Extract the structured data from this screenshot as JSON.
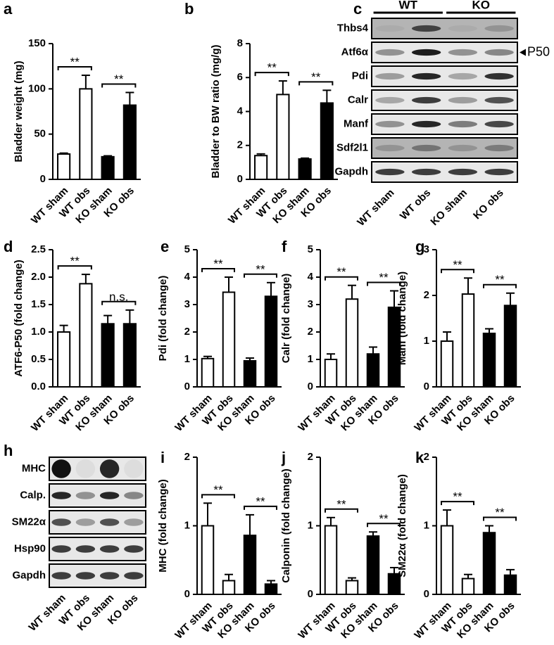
{
  "chart_data": [
    {
      "type": "bar",
      "panel": "a",
      "ylabel": "Bladder weight (mg)",
      "categories": [
        "WT sham",
        "WT obs",
        "KO sham",
        "KO obs"
      ],
      "values": [
        28,
        100,
        25,
        82
      ],
      "errors": [
        1,
        15,
        1,
        14
      ],
      "colors": [
        "#ffffff",
        "#ffffff",
        "#000000",
        "#000000"
      ],
      "ylim": [
        0,
        150
      ],
      "yticks": [
        0,
        50,
        100,
        150
      ],
      "annotations": [
        "**",
        "**"
      ]
    },
    {
      "type": "bar",
      "panel": "b",
      "ylabel": "Bladder to BW ratio (mg/g)",
      "categories": [
        "WT sham",
        "WT obs",
        "KO sham",
        "KO obs"
      ],
      "values": [
        1.4,
        5.0,
        1.2,
        4.5
      ],
      "errors": [
        0.1,
        0.8,
        0.05,
        0.75
      ],
      "colors": [
        "#ffffff",
        "#ffffff",
        "#000000",
        "#000000"
      ],
      "ylim": [
        0,
        8
      ],
      "yticks": [
        0,
        2,
        4,
        6,
        8
      ],
      "annotations": [
        "**",
        "**"
      ]
    },
    {
      "type": "blot",
      "panel": "c",
      "groups": [
        "WT",
        "KO"
      ],
      "rows": [
        "Thbs4",
        "Atf6α",
        "Pdi",
        "Calr",
        "Manf",
        "Sdf2l1",
        "Gapdh"
      ],
      "marker": "P50",
      "categories": [
        "WT sham",
        "WT obs",
        "KO sham",
        "KO obs"
      ]
    },
    {
      "type": "bar",
      "panel": "d",
      "ylabel": "ATF6-P50 (fold change)",
      "categories": [
        "WT sham",
        "WT obs",
        "KO sham",
        "KO obs"
      ],
      "values": [
        1.0,
        1.88,
        1.15,
        1.15
      ],
      "errors": [
        0.12,
        0.17,
        0.15,
        0.25
      ],
      "colors": [
        "#ffffff",
        "#ffffff",
        "#000000",
        "#000000"
      ],
      "ylim": [
        0,
        2.5
      ],
      "yticks": [
        {
          "value": 0,
          "label": "0.0"
        },
        0.5,
        {
          "value": 1,
          "label": "1.0"
        },
        1.5,
        {
          "value": 2,
          "label": "2.0"
        },
        2.5
      ],
      "annotations": [
        "**",
        "n.s."
      ]
    },
    {
      "type": "bar",
      "panel": "e",
      "ylabel": "Pdi (fold change)",
      "categories": [
        "WT sham",
        "WT obs",
        "KO sham",
        "KO obs"
      ],
      "values": [
        1.03,
        3.45,
        0.95,
        3.3
      ],
      "errors": [
        0.08,
        0.55,
        0.1,
        0.5
      ],
      "colors": [
        "#ffffff",
        "#ffffff",
        "#000000",
        "#000000"
      ],
      "ylim": [
        0,
        5
      ],
      "yticks": [
        0,
        1,
        2,
        3,
        4,
        5
      ],
      "annotations": [
        "**",
        "**"
      ]
    },
    {
      "type": "bar",
      "panel": "f",
      "ylabel": "Calr (fold change)",
      "categories": [
        "WT sham",
        "WT obs",
        "KO sham",
        "KO obs"
      ],
      "values": [
        1.0,
        3.2,
        1.2,
        2.9
      ],
      "errors": [
        0.2,
        0.5,
        0.25,
        0.6
      ],
      "colors": [
        "#ffffff",
        "#ffffff",
        "#000000",
        "#000000"
      ],
      "ylim": [
        0,
        5
      ],
      "yticks": [
        0,
        1,
        2,
        3,
        4,
        5
      ],
      "annotations": [
        "**",
        "**"
      ]
    },
    {
      "type": "bar",
      "panel": "g",
      "ylabel": "Manf (fold change)",
      "categories": [
        "WT sham",
        "WT obs",
        "KO sham",
        "KO obs"
      ],
      "values": [
        1.0,
        2.03,
        1.17,
        1.78
      ],
      "errors": [
        0.2,
        0.35,
        0.1,
        0.27
      ],
      "colors": [
        "#ffffff",
        "#ffffff",
        "#000000",
        "#000000"
      ],
      "ylim": [
        0,
        3
      ],
      "yticks": [
        0,
        1,
        2,
        3
      ],
      "annotations": [
        "**",
        "**"
      ]
    },
    {
      "type": "blot",
      "panel": "h",
      "rows": [
        "MHC",
        "Calp.",
        "SM22α",
        "Hsp90",
        "Gapdh"
      ],
      "categories": [
        "WT sham",
        "WT obs",
        "KO sham",
        "KO obs"
      ]
    },
    {
      "type": "bar",
      "panel": "i",
      "ylabel": "MHC (fold change)",
      "categories": [
        "WT sham",
        "WT obs",
        "KO sham",
        "KO obs"
      ],
      "values": [
        1.0,
        0.2,
        0.86,
        0.15
      ],
      "errors": [
        0.33,
        0.09,
        0.3,
        0.05
      ],
      "colors": [
        "#ffffff",
        "#ffffff",
        "#000000",
        "#000000"
      ],
      "ylim": [
        0,
        2
      ],
      "yticks": [
        0,
        1,
        2
      ],
      "annotations": [
        "**",
        "**"
      ]
    },
    {
      "type": "bar",
      "panel": "j",
      "ylabel": "Calponin (fold change)",
      "categories": [
        "WT sham",
        "WT obs",
        "KO sham",
        "KO obs"
      ],
      "values": [
        1.0,
        0.2,
        0.85,
        0.3
      ],
      "errors": [
        0.12,
        0.04,
        0.06,
        0.09
      ],
      "colors": [
        "#ffffff",
        "#ffffff",
        "#000000",
        "#000000"
      ],
      "ylim": [
        0,
        2
      ],
      "yticks": [
        0,
        1,
        2
      ],
      "annotations": [
        "**",
        "**"
      ]
    },
    {
      "type": "bar",
      "panel": "k",
      "ylabel": "SM22α (fold change)",
      "categories": [
        "WT sham",
        "WT obs",
        "KO sham",
        "KO obs"
      ],
      "values": [
        1.0,
        0.23,
        0.9,
        0.28
      ],
      "errors": [
        0.23,
        0.06,
        0.1,
        0.08
      ],
      "colors": [
        "#ffffff",
        "#ffffff",
        "#000000",
        "#000000"
      ],
      "ylim": [
        0,
        2
      ],
      "yticks": [
        0,
        1,
        2
      ],
      "annotations": [
        "**",
        "**"
      ]
    }
  ]
}
